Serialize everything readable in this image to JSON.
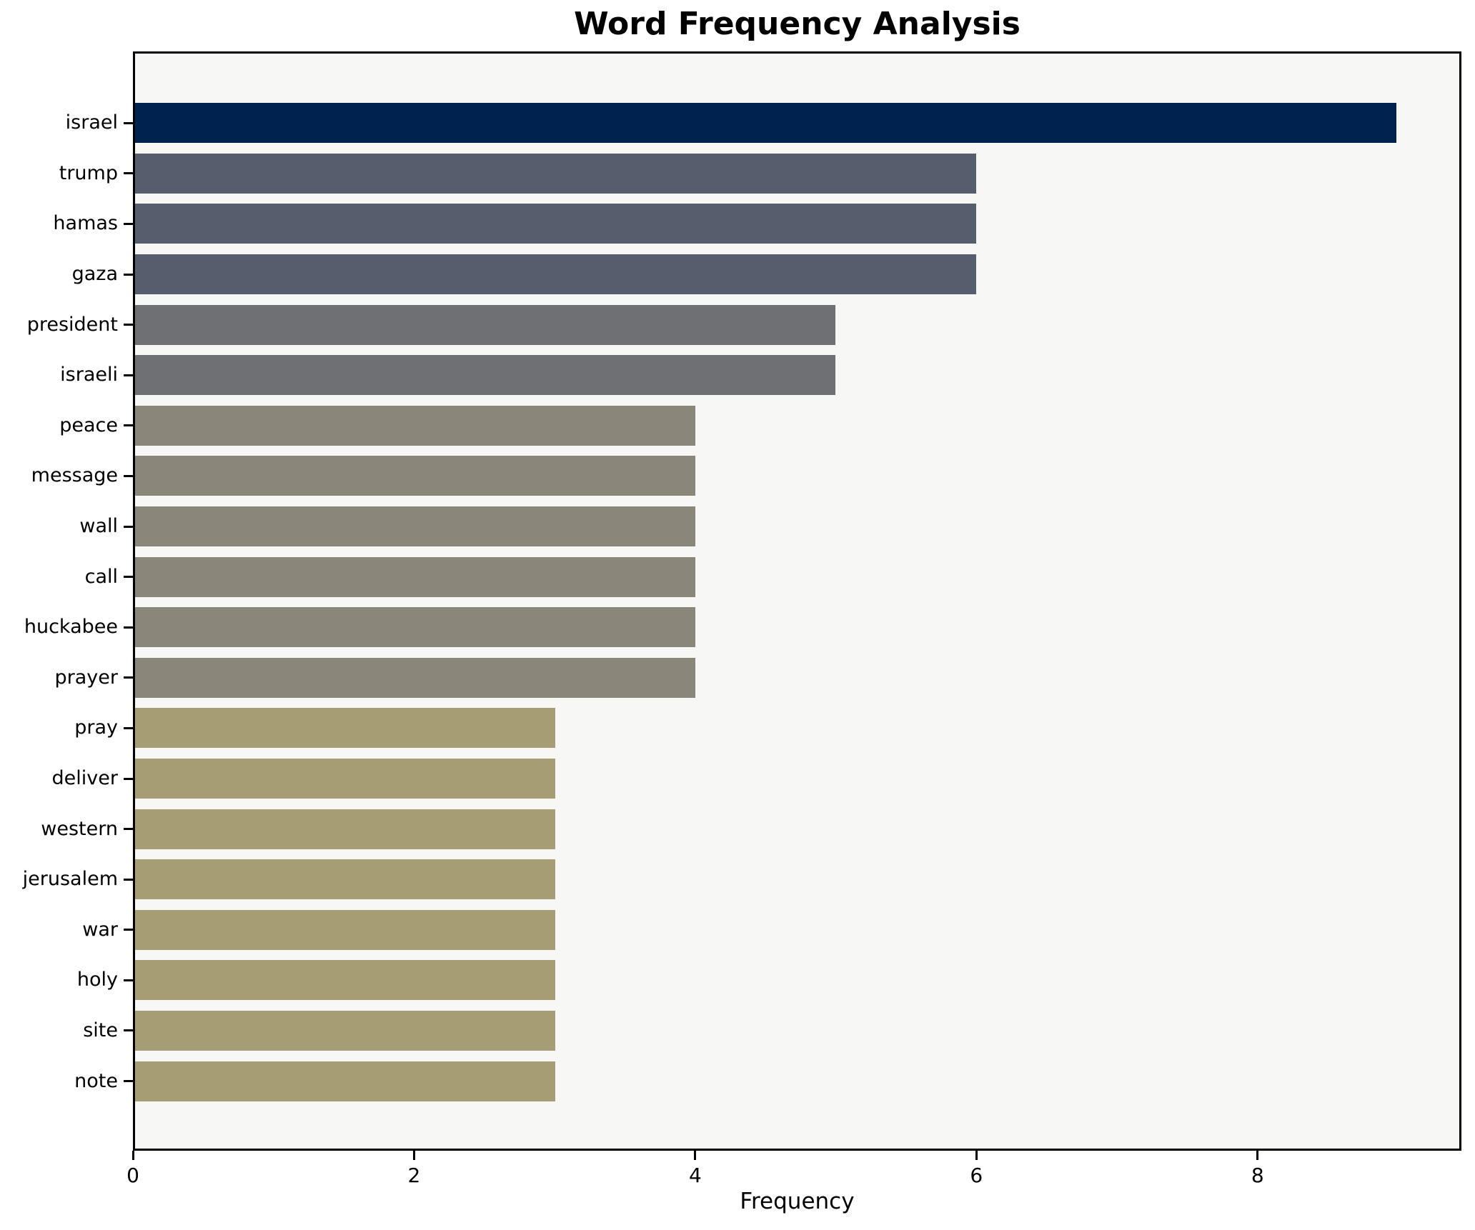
{
  "figure": {
    "background": "#ffffff",
    "plot_background": "#f7f7f6",
    "spine_color": "#000000"
  },
  "chart_data": {
    "type": "bar",
    "orientation": "horizontal",
    "title": "Word Frequency Analysis",
    "xlabel": "Frequency",
    "ylabel": "",
    "categories": [
      "israel",
      "trump",
      "hamas",
      "gaza",
      "president",
      "israeli",
      "peace",
      "message",
      "wall",
      "call",
      "huckabee",
      "prayer",
      "pray",
      "deliver",
      "western",
      "jerusalem",
      "war",
      "holy",
      "site",
      "note"
    ],
    "values": [
      9,
      6,
      6,
      6,
      5,
      5,
      4,
      4,
      4,
      4,
      4,
      4,
      3,
      3,
      3,
      3,
      3,
      3,
      3,
      3
    ],
    "bar_colors": [
      "#00224e",
      "#565d6d",
      "#565d6d",
      "#565d6d",
      "#6f7073",
      "#6f7073",
      "#8a8679",
      "#8a8679",
      "#8a8679",
      "#8a8679",
      "#8a8679",
      "#8a8679",
      "#a69d74",
      "#a69d74",
      "#a69d74",
      "#a69d74",
      "#a69d74",
      "#a69d74",
      "#a69d74",
      "#a69d74"
    ],
    "xticks": [
      0,
      2,
      4,
      6,
      8
    ],
    "xlim": [
      0,
      9.45
    ],
    "grid": false,
    "legend_position": "none",
    "bar_gap_fraction": 0.2
  }
}
